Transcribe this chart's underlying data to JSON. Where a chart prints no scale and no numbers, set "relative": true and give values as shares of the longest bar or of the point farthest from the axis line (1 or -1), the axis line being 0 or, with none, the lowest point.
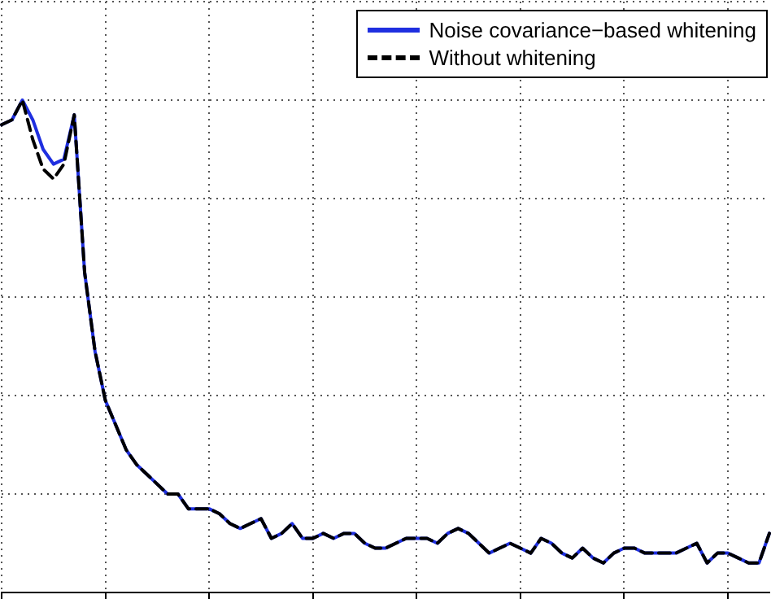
{
  "chart_data": {
    "type": "line",
    "relative": true,
    "grid": true,
    "legend": "top right",
    "marker": "none",
    "categories": [
      null,
      null,
      null,
      null,
      null,
      null,
      null,
      null,
      null,
      null,
      null,
      null,
      null,
      null,
      null,
      null,
      null,
      null,
      null,
      null,
      null,
      null,
      null,
      null,
      null,
      null,
      null,
      null,
      null,
      null,
      null,
      null,
      null,
      null,
      null,
      null,
      null,
      null,
      null,
      null,
      null,
      null,
      null,
      null,
      null,
      null,
      null,
      null,
      null,
      null,
      null,
      null,
      null,
      null,
      null,
      null,
      null,
      null,
      null,
      null,
      null,
      null,
      null,
      null,
      null,
      null,
      null,
      null,
      null,
      null,
      null,
      null,
      null,
      null,
      null
    ],
    "series": [
      {
        "name": "Noise covariance−based whitening",
        "color": "#1f2fe0",
        "line_style": "solid",
        "values": [
          0.95,
          0.96,
          1.0,
          0.96,
          0.9,
          0.87,
          0.88,
          0.97,
          0.65,
          0.49,
          0.39,
          0.34,
          0.29,
          0.26,
          0.24,
          0.22,
          0.2,
          0.2,
          0.17,
          0.17,
          0.17,
          0.16,
          0.14,
          0.13,
          0.14,
          0.15,
          0.11,
          0.12,
          0.14,
          0.11,
          0.11,
          0.12,
          0.11,
          0.12,
          0.12,
          0.1,
          0.09,
          0.09,
          0.1,
          0.11,
          0.11,
          0.11,
          0.1,
          0.12,
          0.13,
          0.12,
          0.1,
          0.08,
          0.09,
          0.1,
          0.09,
          0.08,
          0.11,
          0.1,
          0.08,
          0.07,
          0.09,
          0.07,
          0.06,
          0.08,
          0.09,
          0.09,
          0.08,
          0.08,
          0.08,
          0.08,
          0.09,
          0.1,
          0.06,
          0.08,
          0.08,
          0.07,
          0.06,
          0.06,
          0.12
        ]
      },
      {
        "name": "Without whitening",
        "color": "#000000",
        "line_style": "dashed",
        "values": [
          0.95,
          0.96,
          1.0,
          0.92,
          0.86,
          0.84,
          0.87,
          0.97,
          0.65,
          0.49,
          0.39,
          0.34,
          0.29,
          0.26,
          0.24,
          0.22,
          0.2,
          0.2,
          0.17,
          0.17,
          0.17,
          0.16,
          0.14,
          0.13,
          0.14,
          0.15,
          0.11,
          0.12,
          0.14,
          0.11,
          0.11,
          0.12,
          0.11,
          0.12,
          0.12,
          0.1,
          0.09,
          0.09,
          0.1,
          0.11,
          0.11,
          0.11,
          0.1,
          0.12,
          0.13,
          0.12,
          0.1,
          0.08,
          0.09,
          0.1,
          0.09,
          0.08,
          0.11,
          0.1,
          0.08,
          0.07,
          0.09,
          0.07,
          0.06,
          0.08,
          0.09,
          0.09,
          0.08,
          0.08,
          0.08,
          0.08,
          0.09,
          0.1,
          0.06,
          0.08,
          0.08,
          0.07,
          0.06,
          0.06,
          0.12
        ]
      }
    ]
  }
}
